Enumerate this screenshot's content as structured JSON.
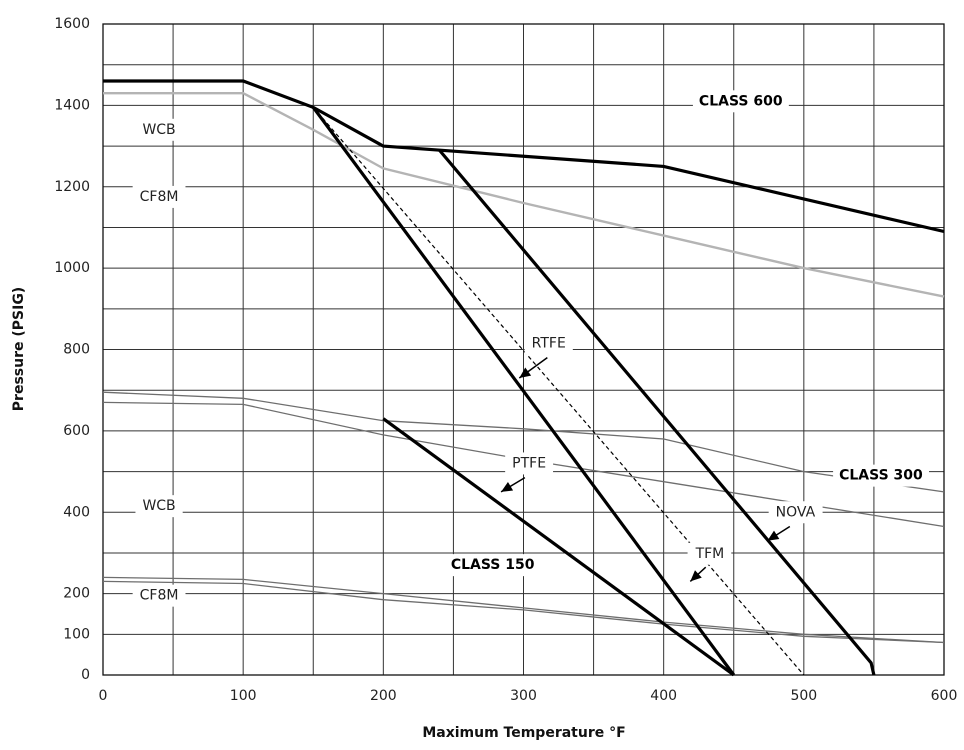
{
  "chart_data": {
    "type": "line",
    "xlabel": "Maximum Temperature °F",
    "ylabel": "Pressure (PSIG)",
    "xlim": [
      0,
      600
    ],
    "ylim": [
      0,
      1600
    ],
    "x_ticks": [
      "0",
      "100",
      "200",
      "300",
      "400",
      "500",
      "600"
    ],
    "y_ticks": [
      "0",
      "100",
      "200",
      "400",
      "600",
      "800",
      "1000",
      "1200",
      "1400",
      "1600"
    ],
    "y_tick_values": [
      0,
      100,
      200,
      400,
      600,
      800,
      1000,
      1200,
      1400,
      1600
    ],
    "grid": true,
    "colors": {
      "bold": "#000000",
      "class600_cf8m": "#b4b4b4",
      "class300_lines": "#6e6e6e",
      "class150_lines": "#6e6e6e",
      "grid": "#333333"
    },
    "series": [
      {
        "key": "class600_wcb",
        "points": [
          [
            0,
            1460
          ],
          [
            100,
            1460
          ],
          [
            150,
            1395
          ],
          [
            200,
            1300
          ],
          [
            400,
            1250
          ],
          [
            600,
            1090
          ]
        ]
      },
      {
        "key": "class600_cf8m",
        "points": [
          [
            0,
            1430
          ],
          [
            100,
            1430
          ],
          [
            150,
            1340
          ],
          [
            200,
            1245
          ],
          [
            300,
            1160
          ],
          [
            400,
            1080
          ],
          [
            500,
            1000
          ],
          [
            600,
            930
          ]
        ]
      },
      {
        "key": "class300_wcb",
        "points": [
          [
            0,
            695
          ],
          [
            100,
            680
          ],
          [
            200,
            625
          ],
          [
            300,
            605
          ],
          [
            400,
            580
          ],
          [
            500,
            500
          ],
          [
            600,
            450
          ]
        ]
      },
      {
        "key": "class300_cf8m",
        "points": [
          [
            0,
            670
          ],
          [
            100,
            665
          ],
          [
            200,
            590
          ],
          [
            300,
            530
          ],
          [
            400,
            475
          ],
          [
            500,
            420
          ],
          [
            600,
            365
          ]
        ]
      },
      {
        "key": "class150_wcb",
        "points": [
          [
            0,
            240
          ],
          [
            100,
            235
          ],
          [
            200,
            200
          ],
          [
            300,
            165
          ],
          [
            400,
            130
          ],
          [
            500,
            100
          ],
          [
            600,
            80
          ]
        ]
      },
      {
        "key": "class150_cf8m",
        "points": [
          [
            0,
            230
          ],
          [
            100,
            225
          ],
          [
            200,
            185
          ],
          [
            300,
            160
          ],
          [
            400,
            125
          ],
          [
            500,
            95
          ],
          [
            600,
            80
          ]
        ]
      },
      {
        "key": "rtfe",
        "points": [
          [
            150,
            1395
          ],
          [
            450,
            0
          ]
        ]
      },
      {
        "key": "ptfe",
        "points": [
          [
            200,
            630
          ],
          [
            450,
            0
          ]
        ]
      },
      {
        "key": "tfm",
        "points": [
          [
            150,
            1395
          ],
          [
            500,
            0
          ]
        ]
      },
      {
        "key": "nova",
        "points": [
          [
            240,
            1290
          ],
          [
            548,
            30
          ],
          [
            550,
            0
          ]
        ]
      }
    ],
    "annotations": [
      {
        "text": "CLASS 600",
        "x": 455,
        "y": 1410
      },
      {
        "text": "CLASS 300",
        "x": 555,
        "y": 490
      },
      {
        "text": "CLASS 150",
        "x": 278,
        "y": 270
      },
      {
        "text": "WCB",
        "x": 40,
        "y": 1340
      },
      {
        "text": "CF8M",
        "x": 40,
        "y": 1175
      },
      {
        "text": "WCB",
        "x": 40,
        "y": 415
      },
      {
        "text": "CF8M",
        "x": 40,
        "y": 195
      },
      {
        "text": "RTFE",
        "x": 318,
        "y": 815
      },
      {
        "text": "PTFE",
        "x": 304,
        "y": 520
      },
      {
        "text": "TFM",
        "x": 433,
        "y": 298
      },
      {
        "text": "NOVA",
        "x": 494,
        "y": 400
      }
    ],
    "arrows": [
      {
        "from": [
          317,
          780
        ],
        "to": [
          297,
          730
        ]
      },
      {
        "from": [
          301,
          485
        ],
        "to": [
          284,
          450
        ]
      },
      {
        "from": [
          430,
          265
        ],
        "to": [
          419,
          230
        ]
      },
      {
        "from": [
          490,
          365
        ],
        "to": [
          474,
          330
        ]
      }
    ]
  }
}
